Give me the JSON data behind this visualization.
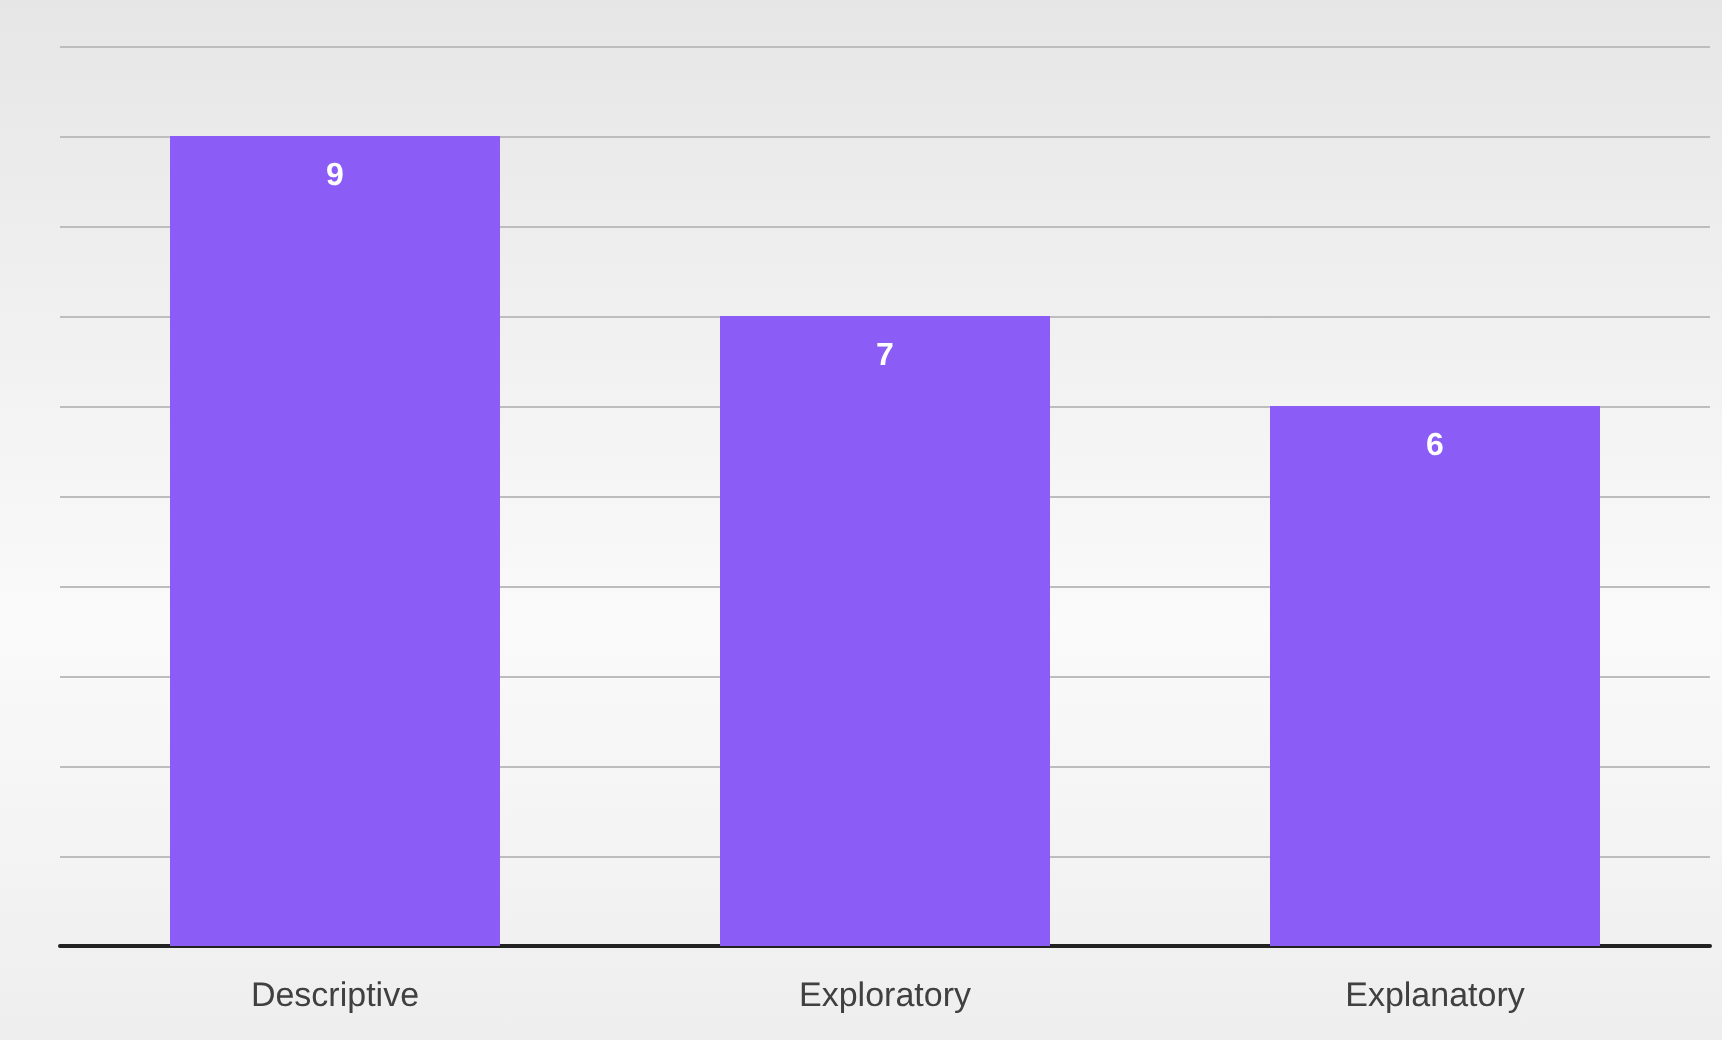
{
  "chart_data": {
    "type": "bar",
    "categories": [
      "Descriptive",
      "Exploratory",
      "Explanatory"
    ],
    "values": [
      9,
      7,
      6
    ],
    "color": "#8b5cf6",
    "data_labels": true,
    "ylim": [
      0,
      10
    ],
    "yticks": [
      {
        "value": 0,
        "label": null
      },
      {
        "value": 1,
        "label": null
      },
      {
        "value": 2,
        "label": null
      },
      {
        "value": 3,
        "label": null
      },
      {
        "value": 4,
        "label": null
      },
      {
        "value": 5,
        "label": null
      },
      {
        "value": 6,
        "label": null
      },
      {
        "value": 7,
        "label": null
      },
      {
        "value": 8,
        "label": null
      },
      {
        "value": 9,
        "label": null
      },
      {
        "value": 10,
        "label": null
      }
    ],
    "tick_labels": "x",
    "grid": "y"
  }
}
